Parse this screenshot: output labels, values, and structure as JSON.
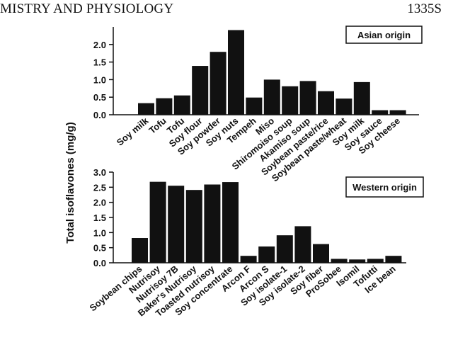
{
  "header": {
    "running_head": "MISTRY AND PHYSIOLOGY",
    "page_number": "1335S"
  },
  "colors": {
    "bar": "#111111",
    "axis": "#111111"
  },
  "chart_data": {
    "type": "bar",
    "ylabel": "Total isoflavones (mg/g)",
    "panels": [
      {
        "id": "asian",
        "legend": "Asian origin",
        "ylim": [
          0,
          2.5
        ],
        "yticks": [
          0.0,
          0.5,
          1.0,
          1.5,
          2.0
        ],
        "ytick_labels": [
          "0.0",
          "0.5",
          "1.0",
          "1.5",
          "2.0"
        ],
        "categories": [
          "Soy milk",
          "Tofu",
          "Tofu",
          "Soy flour",
          "Soy powder",
          "Soy nuts",
          "Tempeh",
          "Miso",
          "Shiromoiso soup",
          "Akamiso soup",
          "Soybean paste/rice",
          "Soybean paste/wheat",
          "Soy milk",
          "Soy sauce",
          "Soy cheese"
        ],
        "values": [
          0.33,
          0.47,
          0.55,
          1.39,
          1.79,
          2.41,
          0.49,
          1.0,
          0.81,
          0.96,
          0.67,
          0.46,
          0.93,
          0.13,
          0.13
        ]
      },
      {
        "id": "western",
        "legend": "Western origin",
        "ylim": [
          0,
          3.0
        ],
        "yticks": [
          0.0,
          0.5,
          1.0,
          1.5,
          2.0,
          2.5,
          3.0
        ],
        "ytick_labels": [
          "0.0",
          "0.5",
          "1.0",
          "1.5",
          "2.0",
          "2.5",
          "3.0"
        ],
        "categories": [
          "Soybean chips",
          "Nutrisoy",
          "Nutrisoy 7B",
          "Baker's Nutrisoy",
          "Toasted nutrisoy",
          "Soy concentrate",
          "Arcon F",
          "Arcon S",
          "Soy isolate-1",
          "Soy isolate-2",
          "Soy fiber",
          "ProSobee",
          "Isomil",
          "Tofutti",
          "Ice bean"
        ],
        "values": [
          0.82,
          2.68,
          2.55,
          2.41,
          2.59,
          2.67,
          0.23,
          0.54,
          0.91,
          1.21,
          0.62,
          0.13,
          0.11,
          0.13,
          0.23
        ]
      }
    ]
  }
}
